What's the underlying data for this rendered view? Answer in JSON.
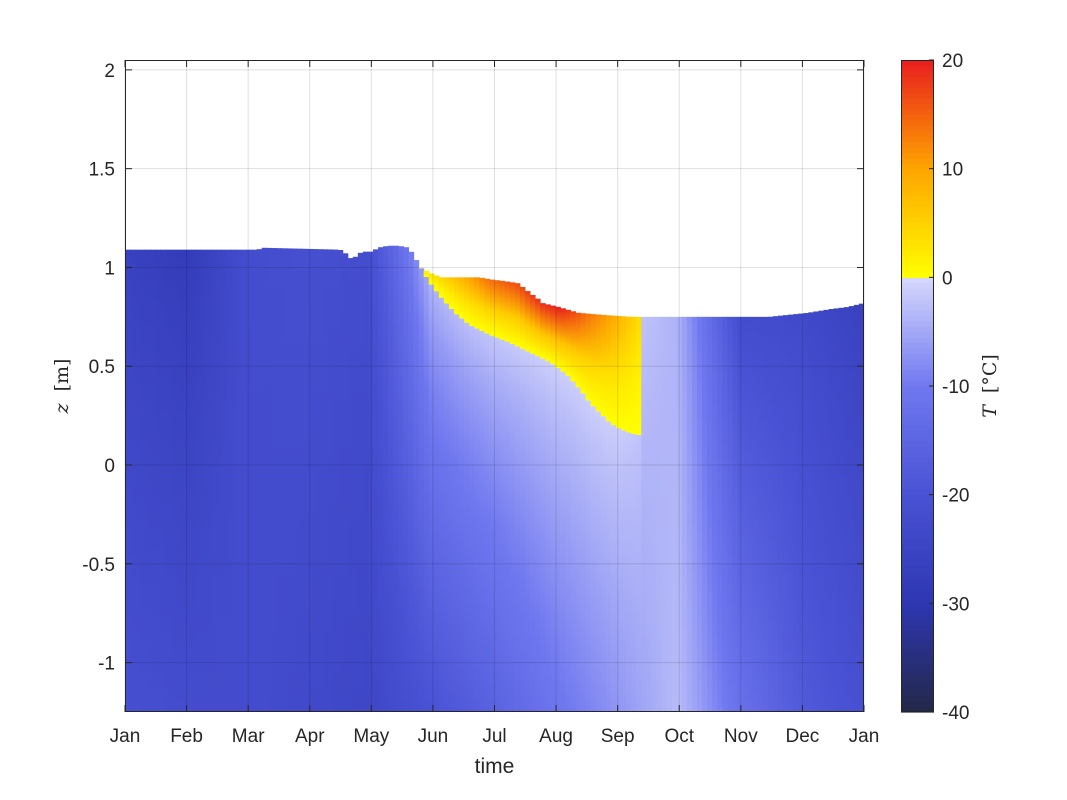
{
  "chart_data": {
    "type": "heatmap",
    "xlabel": "time",
    "ylabel": "z [m]",
    "ylabel_var": "z",
    "ylabel_unit": "[m]",
    "x_ticks": [
      "Jan",
      "Feb",
      "Mar",
      "Apr",
      "May",
      "Jun",
      "Jul",
      "Aug",
      "Sep",
      "Oct",
      "Nov",
      "Dec",
      "Jan"
    ],
    "xlim_days": [
      0,
      365
    ],
    "y_ticks": [
      -1,
      -0.5,
      0,
      0.5,
      1,
      1.5,
      2
    ],
    "y_tick_labels": [
      "-1",
      "-0.5",
      "0",
      "0.5",
      "1",
      "1.5",
      "2"
    ],
    "ylim": [
      -1.25,
      2.05
    ],
    "grid": true,
    "colorbar": {
      "label": "T [°C]",
      "label_var": "T",
      "label_unit": "[°C]",
      "clim": [
        -40,
        20
      ],
      "ticks": [
        -40,
        -30,
        -20,
        -10,
        0,
        10,
        20
      ],
      "tick_labels": [
        "-40",
        "-30",
        "-20",
        "-10",
        "0",
        "10",
        "20"
      ]
    },
    "surface_profile": {
      "x_days": [
        0,
        46,
        66,
        67,
        106,
        109,
        112,
        117,
        122,
        125,
        130,
        135,
        140,
        146,
        151,
        156,
        163,
        168,
        175,
        180,
        188,
        194,
        200,
        204,
        206,
        214,
        224,
        236,
        250,
        260,
        277,
        292,
        304,
        318,
        337,
        349,
        357,
        365
      ],
      "z": [
        1.09,
        1.09,
        1.09,
        1.1,
        1.09,
        1.07,
        1.04,
        1.08,
        1.08,
        1.1,
        1.11,
        1.11,
        1.1,
        1.0,
        0.97,
        0.95,
        0.95,
        0.95,
        0.95,
        0.94,
        0.93,
        0.92,
        0.87,
        0.84,
        0.82,
        0.8,
        0.77,
        0.76,
        0.75,
        0.75,
        0.75,
        0.75,
        0.75,
        0.75,
        0.77,
        0.79,
        0.8,
        0.82
      ]
    },
    "melt_bottom_profile": {
      "x_days": [
        146,
        150,
        156,
        163,
        170,
        180,
        190,
        200,
        210,
        218,
        225,
        230,
        236,
        240,
        245,
        250,
        255
      ],
      "z": [
        1.0,
        0.93,
        0.85,
        0.77,
        0.71,
        0.66,
        0.62,
        0.57,
        0.52,
        0.46,
        0.38,
        0.31,
        0.25,
        0.21,
        0.18,
        0.16,
        0.15
      ]
    },
    "melt_layer_T": {
      "x_days": [
        148,
        160,
        180,
        200,
        215,
        228,
        240,
        254
      ],
      "max_T": [
        2,
        6,
        14,
        18,
        20,
        14,
        10,
        4
      ]
    },
    "subsurface_T_by_month": {
      "x_days": [
        0,
        31,
        59,
        90,
        120,
        151,
        181,
        212,
        243,
        273,
        304,
        334,
        365
      ],
      "T_near_surface": [
        -26,
        -28,
        -22,
        -21,
        -22,
        -4,
        -2,
        -1,
        -1,
        -4,
        -22,
        -23,
        -26
      ],
      "T_deep": [
        -21,
        -22,
        -22,
        -23,
        -24,
        -20,
        -16,
        -11,
        -7,
        -3,
        -12,
        -18,
        -21
      ]
    }
  }
}
